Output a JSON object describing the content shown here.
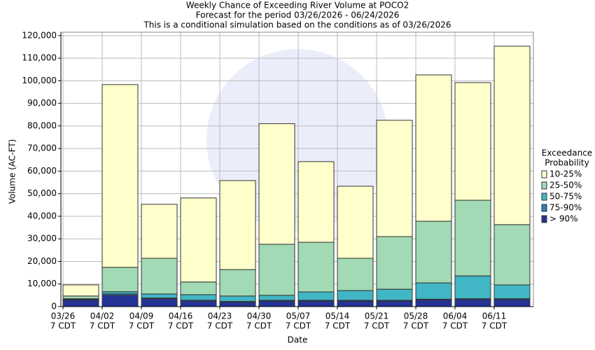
{
  "chart_data": {
    "type": "stacked_bar",
    "title": [
      "Weekly Chance of Exceeding River Volume at POCO2",
      "Forecast for the period 03/26/2026 - 06/24/2026",
      "This is a conditional simulation based on the conditions as of 03/26/2026"
    ],
    "x_label": "Date",
    "y_label": "Volume (AC-FT)",
    "categories": [
      "03/26",
      "04/02",
      "04/09",
      "04/16",
      "04/23",
      "04/30",
      "05/07",
      "05/14",
      "05/21",
      "05/28",
      "06/04",
      "06/11"
    ],
    "category_sublabel": "7 CDT",
    "legend_title": [
      "Exceedance",
      "Probability"
    ],
    "series": [
      {
        "name": "> 90%",
        "color": "#253494",
        "values": [
          3000,
          5000,
          3500,
          2500,
          2000,
          2500,
          2500,
          2500,
          2500,
          3000,
          3200,
          3200
        ]
      },
      {
        "name": "75-90%",
        "color": "#2c7fb8",
        "values": [
          200,
          600,
          300,
          300,
          300,
          300,
          300,
          300,
          300,
          300,
          300,
          300
        ]
      },
      {
        "name": "50-75%",
        "color": "#41b6c4",
        "values": [
          300,
          1000,
          1800,
          2500,
          2400,
          2200,
          3700,
          4300,
          4900,
          7200,
          10100,
          6100
        ]
      },
      {
        "name": "25-50%",
        "color": "#a1dab4",
        "values": [
          1200,
          10800,
          15800,
          5600,
          11700,
          22600,
          22000,
          14300,
          23300,
          27300,
          33500,
          26700
        ]
      },
      {
        "name": "10-25%",
        "color": "#ffffcc",
        "values": [
          4900,
          80900,
          23900,
          37200,
          39400,
          53400,
          35700,
          31900,
          51500,
          64800,
          52100,
          79000
        ]
      }
    ],
    "ylim": [
      0,
      121500
    ],
    "yticks": [
      0,
      {
        "value": 10000,
        "label": "10,000"
      },
      {
        "value": 20000,
        "label": "20,000"
      },
      {
        "value": 30000,
        "label": "30,000"
      },
      {
        "value": 40000,
        "label": "40,000"
      },
      {
        "value": 50000,
        "label": "50,000"
      },
      {
        "value": 60000,
        "label": "60,000"
      },
      {
        "value": 70000,
        "label": "70,000"
      },
      {
        "value": 80000,
        "label": "80,000"
      },
      {
        "value": 90000,
        "label": "90,000"
      },
      {
        "value": 100000,
        "label": "100,000"
      },
      {
        "value": 110000,
        "label": "110,000"
      },
      {
        "value": 120000,
        "label": "120,000"
      }
    ],
    "grid": true
  }
}
